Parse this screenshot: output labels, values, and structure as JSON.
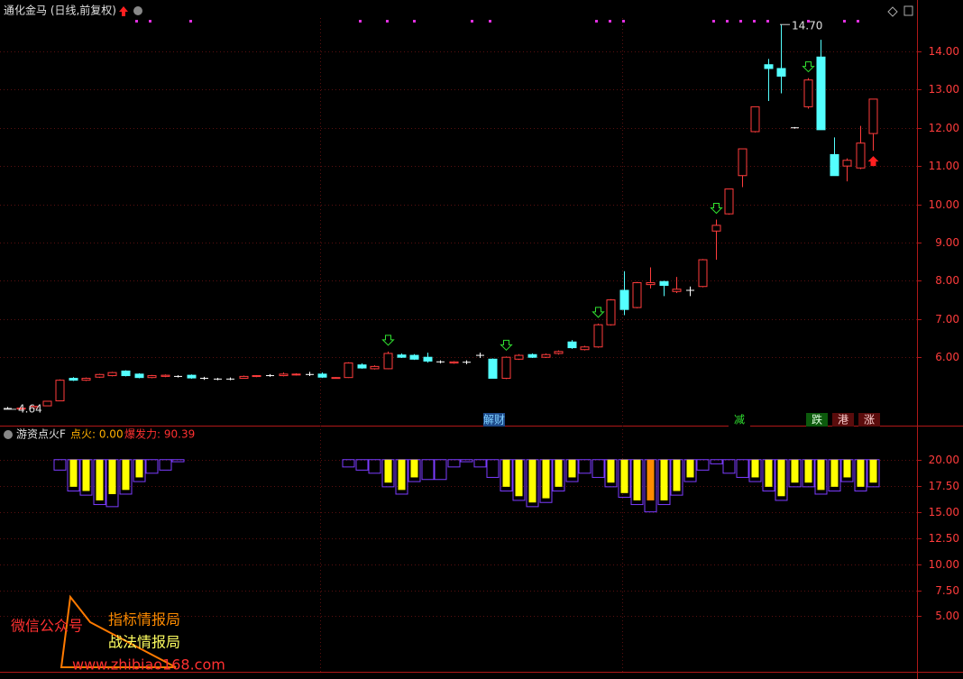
{
  "chart_data": [
    {
      "type": "candlestick",
      "title": "通化金马 (日线,前复权)",
      "open": [
        4.66,
        4.66,
        4.68,
        4.73,
        4.86,
        5.45,
        5.4,
        5.48,
        5.52,
        5.64,
        5.56,
        5.47,
        5.5,
        5.5,
        5.53,
        5.45,
        5.43,
        5.43,
        5.45,
        5.5,
        5.52,
        5.52,
        5.54,
        5.55,
        5.56,
        5.46,
        5.47,
        5.8,
        5.7,
        5.7,
        6.06,
        6.05,
        6.0,
        5.88,
        5.85,
        5.87,
        6.05,
        5.95,
        5.45,
        5.95,
        6.07,
        6.0,
        6.1,
        6.4,
        6.2,
        6.27,
        6.85,
        7.75,
        7.3,
        7.9,
        7.98,
        7.72,
        7.75,
        7.85,
        9.3,
        9.75,
        10.75,
        11.9,
        13.65,
        13.55,
        12.0,
        12.55,
        13.85,
        11.3,
        11.0,
        10.95,
        11.85
      ],
      "high": [
        4.7,
        4.69,
        4.73,
        4.86,
        5.42,
        5.48,
        5.47,
        5.57,
        5.62,
        5.66,
        5.58,
        5.54,
        5.55,
        5.53,
        5.55,
        5.49,
        5.46,
        5.47,
        5.52,
        5.53,
        5.56,
        5.6,
        5.58,
        5.62,
        5.6,
        5.48,
        5.87,
        5.84,
        5.79,
        6.15,
        6.1,
        6.08,
        6.12,
        5.92,
        5.9,
        5.92,
        6.12,
        5.97,
        6.02,
        6.08,
        6.1,
        6.1,
        6.18,
        6.45,
        6.3,
        6.88,
        7.52,
        8.25,
        7.97,
        8.35,
        8.0,
        8.1,
        7.85,
        8.57,
        9.6,
        10.4,
        11.45,
        12.55,
        13.8,
        14.7,
        12.02,
        13.3,
        14.3,
        11.75,
        11.2,
        12.05,
        12.75
      ],
      "low": [
        4.64,
        4.64,
        4.67,
        4.72,
        4.85,
        5.38,
        5.38,
        5.46,
        5.5,
        5.5,
        5.45,
        5.45,
        5.48,
        5.47,
        5.44,
        5.41,
        5.4,
        5.4,
        5.44,
        5.48,
        5.49,
        5.5,
        5.52,
        5.51,
        5.46,
        5.45,
        5.46,
        5.7,
        5.68,
        5.69,
        5.98,
        5.93,
        5.86,
        5.84,
        5.83,
        5.82,
        5.98,
        5.45,
        5.43,
        5.93,
        5.98,
        5.98,
        6.07,
        6.22,
        6.18,
        6.25,
        6.83,
        7.1,
        7.28,
        7.8,
        7.6,
        7.68,
        7.6,
        7.83,
        8.55,
        9.73,
        10.45,
        11.88,
        12.7,
        12.9,
        11.98,
        12.5,
        11.95,
        10.75,
        10.6,
        10.92,
        11.4
      ],
      "close": [
        4.66,
        4.67,
        4.72,
        4.85,
        5.4,
        5.4,
        5.45,
        5.55,
        5.6,
        5.52,
        5.47,
        5.52,
        5.53,
        5.5,
        5.46,
        5.45,
        5.43,
        5.43,
        5.5,
        5.52,
        5.52,
        5.56,
        5.56,
        5.55,
        5.48,
        5.47,
        5.85,
        5.72,
        5.76,
        6.1,
        6.0,
        5.95,
        5.9,
        5.88,
        5.88,
        5.87,
        6.05,
        5.45,
        6.0,
        6.05,
        6.0,
        6.07,
        6.15,
        6.25,
        6.27,
        6.85,
        7.5,
        7.25,
        7.95,
        7.95,
        7.88,
        7.78,
        7.75,
        8.55,
        9.45,
        10.4,
        11.45,
        12.55,
        13.55,
        13.35,
        12.0,
        13.25,
        11.95,
        10.75,
        11.15,
        11.6,
        12.75
      ],
      "up_color": "#ff3c3c",
      "down_color": "#54ffff",
      "flat_color": "#ffffff",
      "ylim": [
        4.26,
        14.87
      ],
      "yticks": [
        {
          "value": 6,
          "label": "6.00"
        },
        {
          "value": 7,
          "label": "7.00"
        },
        {
          "value": 8,
          "label": "8.00"
        },
        {
          "value": 9,
          "label": "9.00"
        },
        {
          "value": 10,
          "label": "10.00"
        },
        {
          "value": 11,
          "label": "11.00"
        },
        {
          "value": 12,
          "label": "12.00"
        },
        {
          "value": 13,
          "label": "13.00"
        },
        {
          "value": 14,
          "label": "14.00"
        }
      ],
      "annotations": [
        {
          "value": 14.7,
          "label": "14.70"
        },
        {
          "value": 4.64,
          "label": "4.64"
        }
      ],
      "events": [
        "解财",
        "减",
        "跌",
        "港",
        "涨"
      ],
      "grid": true
    },
    {
      "type": "bar",
      "title": "游资点火F",
      "readouts": [
        "点火: 0.00",
        "爆发力: 90.39"
      ],
      "bar_base": 20,
      "series": [
        {
          "color": "#7b3cff",
          "style": "outline",
          "values": [
            null,
            null,
            null,
            null,
            19.0,
            17.0,
            16.6,
            15.7,
            15.5,
            16.7,
            17.9,
            18.7,
            19.0,
            19.8,
            null,
            null,
            null,
            null,
            null,
            null,
            null,
            null,
            null,
            null,
            null,
            null,
            19.3,
            19.0,
            18.7,
            17.4,
            16.7,
            17.9,
            18.1,
            18.1,
            19.3,
            19.8,
            19.3,
            18.3,
            17.0,
            16.1,
            15.5,
            15.9,
            17.0,
            17.9,
            18.7,
            18.3,
            17.4,
            16.4,
            15.7,
            15.0,
            15.7,
            16.6,
            17.9,
            19.0,
            19.6,
            18.7,
            18.3,
            17.9,
            17.0,
            16.1,
            17.4,
            17.4,
            16.7,
            17.0,
            17.9,
            17.0,
            17.4
          ]
        },
        {
          "color": "#ffff00",
          "style": "fill",
          "values": [
            null,
            null,
            null,
            null,
            null,
            17.4,
            17.0,
            16.1,
            16.7,
            17.1,
            18.3,
            null,
            null,
            null,
            null,
            null,
            null,
            null,
            null,
            null,
            null,
            null,
            null,
            null,
            null,
            null,
            null,
            null,
            null,
            17.8,
            17.1,
            18.3,
            null,
            null,
            null,
            null,
            null,
            null,
            17.4,
            16.5,
            15.9,
            16.3,
            17.4,
            18.3,
            null,
            null,
            17.8,
            16.8,
            16.1,
            null,
            16.1,
            17.0,
            18.3,
            null,
            null,
            null,
            null,
            18.3,
            17.4,
            16.5,
            17.8,
            17.8,
            17.1,
            17.4,
            18.3,
            17.4,
            17.8
          ]
        },
        {
          "color": "#ff8c00",
          "style": "fill",
          "values": [
            null,
            null,
            null,
            null,
            null,
            null,
            null,
            null,
            null,
            null,
            null,
            null,
            null,
            null,
            null,
            null,
            null,
            null,
            null,
            null,
            null,
            null,
            null,
            null,
            null,
            null,
            null,
            null,
            null,
            null,
            null,
            null,
            null,
            null,
            null,
            null,
            null,
            null,
            null,
            null,
            null,
            null,
            null,
            null,
            null,
            null,
            null,
            null,
            null,
            16.1,
            null,
            null,
            null,
            null,
            null,
            null,
            null,
            null,
            null,
            null,
            null,
            null,
            null,
            null,
            null,
            null,
            null
          ]
        }
      ],
      "ylim": [
        -0.14,
        23
      ],
      "yticks": [
        {
          "value": 5,
          "label": "5.00"
        },
        {
          "value": 7.5,
          "label": "7.50"
        },
        {
          "value": 10,
          "label": "10.00"
        },
        {
          "value": 12.5,
          "label": "12.50"
        },
        {
          "value": 15,
          "label": "15.00"
        },
        {
          "value": 17.5,
          "label": "17.50"
        },
        {
          "value": 20,
          "label": "20.00"
        }
      ],
      "grid": true
    }
  ],
  "watermark": {
    "prefix": "微信公众号",
    "line1": "指标情报局",
    "line2": "战法情报局",
    "url": "www.zhibiao168.com"
  }
}
